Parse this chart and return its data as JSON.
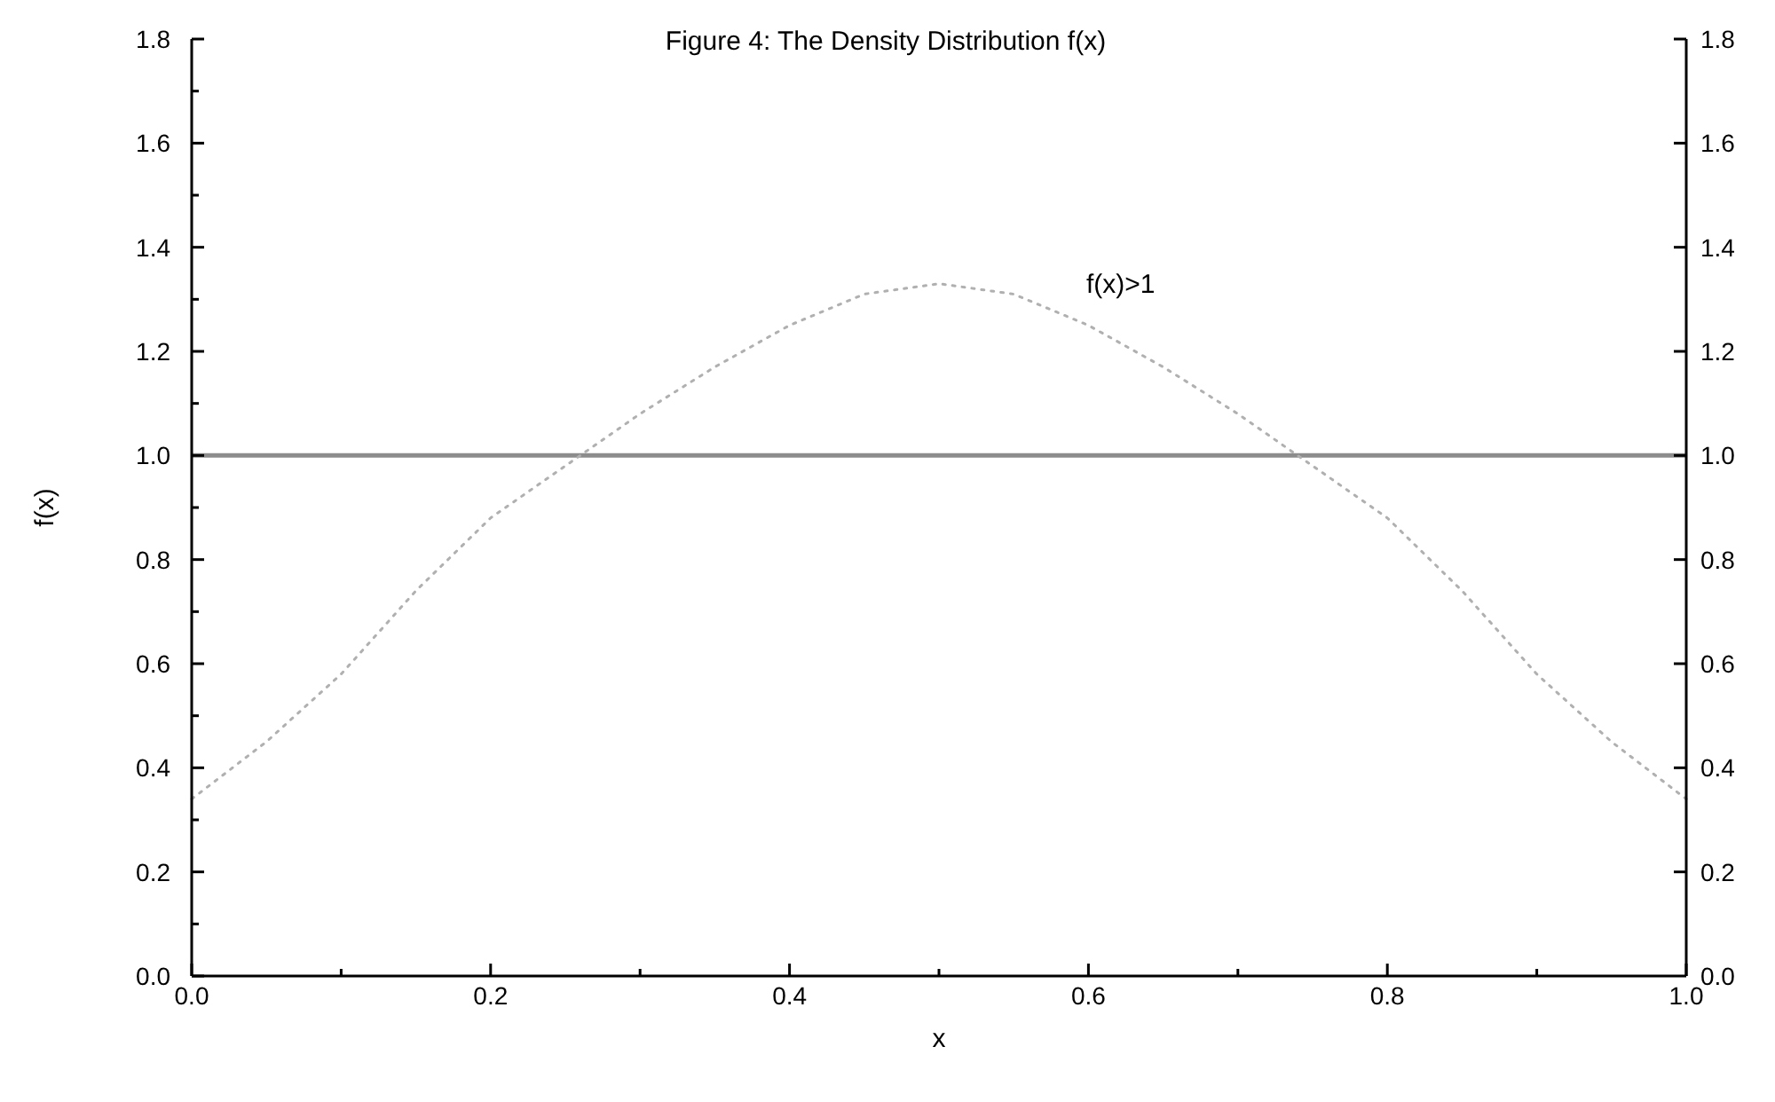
{
  "chart_data": {
    "type": "line",
    "title": "Figure 4: The Density Distribution f(x)",
    "xlabel": "x",
    "ylabel": "f(x)",
    "x": [
      0,
      0.05,
      0.1,
      0.15,
      0.2,
      0.25,
      0.3,
      0.35,
      0.4,
      0.45,
      0.5,
      0.55,
      0.6,
      0.65,
      0.7,
      0.75,
      0.8,
      0.85,
      0.9,
      0.95,
      1
    ],
    "series": [
      {
        "color": "#b0b0b0",
        "line_style": "dotted",
        "values": [
          0.34,
          0.45,
          0.58,
          0.74,
          0.88,
          0.98,
          1.08,
          1.17,
          1.25,
          1.31,
          1.33,
          1.31,
          1.25,
          1.17,
          1.08,
          0.98,
          0.88,
          0.74,
          0.58,
          0.45,
          0.34
        ]
      }
    ],
    "xlim": [
      0,
      1
    ],
    "xticks": [
      {
        "value": 0,
        "label": "0.0"
      },
      {
        "value": 0.1,
        "label": null
      },
      {
        "value": 0.2,
        "label": "0.2"
      },
      {
        "value": 0.3,
        "label": null
      },
      {
        "value": 0.4,
        "label": "0.4"
      },
      {
        "value": 0.5,
        "label": null
      },
      {
        "value": 0.6,
        "label": "0.6"
      },
      {
        "value": 0.7,
        "label": null
      },
      {
        "value": 0.8,
        "label": "0.8"
      },
      {
        "value": 0.9,
        "label": null
      },
      {
        "value": 1,
        "label": "1.0"
      }
    ],
    "ylim": [
      0,
      1.8
    ],
    "yticks": [
      {
        "value": 0,
        "label": "0.0"
      },
      {
        "value": 0.1,
        "label": null
      },
      {
        "value": 0.2,
        "label": "0.2"
      },
      {
        "value": 0.3,
        "label": null
      },
      {
        "value": 0.4,
        "label": "0.4"
      },
      {
        "value": 0.5,
        "label": null
      },
      {
        "value": 0.6,
        "label": "0.6"
      },
      {
        "value": 0.7,
        "label": null
      },
      {
        "value": 0.8,
        "label": "0.8"
      },
      {
        "value": 0.9,
        "label": null
      },
      {
        "value": 1,
        "label": "1.0"
      },
      {
        "value": 1.1,
        "label": null
      },
      {
        "value": 1.2,
        "label": "1.2"
      },
      {
        "value": 1.3,
        "label": null
      },
      {
        "value": 1.4,
        "label": "1.4"
      },
      {
        "value": 1.5,
        "label": null
      },
      {
        "value": 1.6,
        "label": "1.6"
      },
      {
        "value": 1.7,
        "label": null
      },
      {
        "value": 1.8,
        "label": "1.8"
      }
    ],
    "y2lim": [
      0,
      1.8
    ],
    "y2ticks": [
      {
        "value": 0,
        "label": "0.0"
      },
      {
        "value": 0.2,
        "label": "0.2"
      },
      {
        "value": 0.4,
        "label": "0.4"
      },
      {
        "value": 0.6,
        "label": "0.6"
      },
      {
        "value": 0.8,
        "label": "0.8"
      },
      {
        "value": 1,
        "label": "1.0"
      },
      {
        "value": 1.2,
        "label": "1.2"
      },
      {
        "value": 1.4,
        "label": "1.4"
      },
      {
        "value": 1.6,
        "label": "1.6"
      },
      {
        "value": 1.8,
        "label": "1.8"
      }
    ],
    "ref_lines": [
      {
        "axis": "y",
        "value": 1,
        "color": "#8c8c8c"
      }
    ],
    "annotations": [
      "f(x)>1"
    ],
    "grid": false
  }
}
